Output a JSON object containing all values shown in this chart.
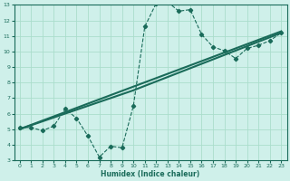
{
  "xlabel": "Humidex (Indice chaleur)",
  "bg_color": "#cff0ea",
  "line_color": "#1a6b5a",
  "grid_color": "#aaddcc",
  "curve_zigzag_x": [
    0,
    1,
    2,
    3,
    4,
    5,
    6,
    7,
    8,
    9,
    10,
    11,
    12,
    13,
    14,
    15,
    16,
    17,
    18,
    19,
    20,
    21,
    22,
    23
  ],
  "curve_zigzag_y": [
    5.1,
    5.1,
    4.9,
    5.2,
    6.3,
    5.7,
    4.55,
    3.2,
    3.9,
    3.8,
    6.5,
    11.6,
    13.1,
    13.2,
    12.6,
    12.7,
    11.1,
    10.3,
    10.05,
    9.55,
    10.2,
    10.4,
    10.7,
    11.2
  ],
  "curve_line1_x": [
    0,
    23
  ],
  "curve_line1_y": [
    5.0,
    11.3
  ],
  "curve_line2_x": [
    0,
    10,
    23
  ],
  "curve_line2_y": [
    5.0,
    7.5,
    11.2
  ],
  "ylim": [
    3,
    13
  ],
  "xlim": [
    -0.5,
    23.5
  ],
  "yticks": [
    3,
    4,
    5,
    6,
    7,
    8,
    9,
    10,
    11,
    12,
    13
  ],
  "xticks": [
    0,
    1,
    2,
    3,
    4,
    5,
    6,
    7,
    8,
    9,
    10,
    11,
    12,
    13,
    14,
    15,
    16,
    17,
    18,
    19,
    20,
    21,
    22,
    23
  ]
}
